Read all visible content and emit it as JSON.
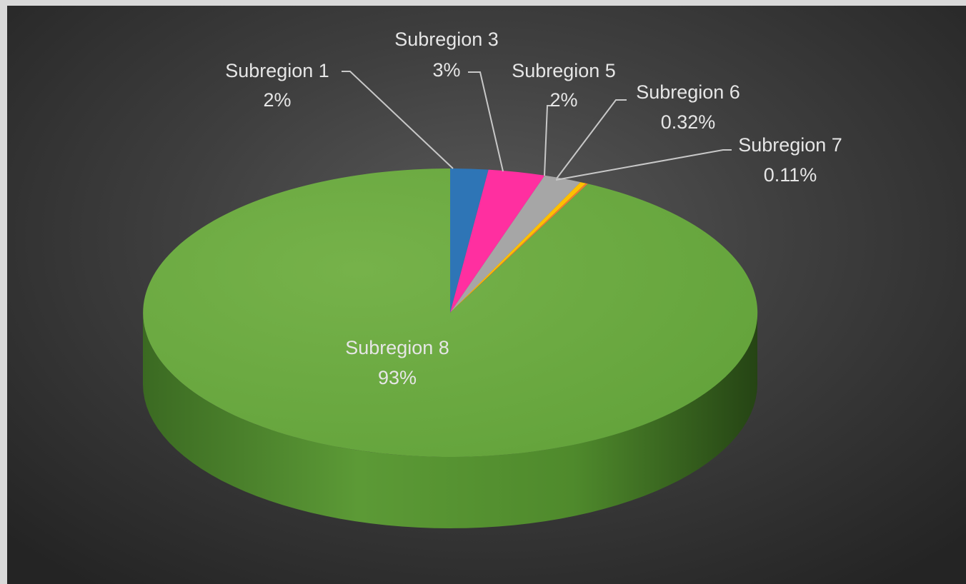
{
  "chart_data": {
    "type": "pie",
    "style": "3d",
    "title": "",
    "slices": [
      {
        "name": "Subregion 1",
        "label": "2%",
        "value": 2,
        "color": "#2e75b6"
      },
      {
        "name": "Subregion 3",
        "label": "3%",
        "value": 3,
        "color": "#ff2fa0"
      },
      {
        "name": "Subregion 5",
        "label": "2%",
        "value": 2,
        "color": "#a6a6a6"
      },
      {
        "name": "Subregion 6",
        "label": "0.32%",
        "value": 0.32,
        "color": "#ffc000"
      },
      {
        "name": "Subregion 7",
        "label": "0.11%",
        "value": 0.11,
        "color": "#ed7d31"
      },
      {
        "name": "Subregion 8",
        "label": "93%",
        "value": 93,
        "color": "#70ad47"
      }
    ],
    "legend": "none",
    "background": "#404040"
  }
}
